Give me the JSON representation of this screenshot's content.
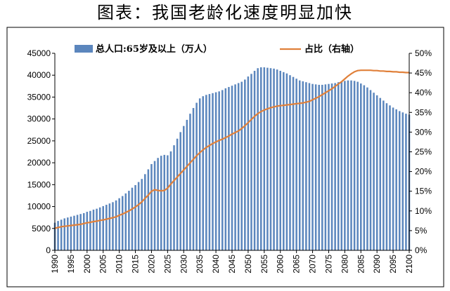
{
  "title": "图表：我国老龄化速度明显加快",
  "colors": {
    "bar": "#5b86bd",
    "line": "#e0803a",
    "frame": "#000000"
  },
  "chart_data": {
    "type": "bar+line",
    "title": "图表：我国老龄化速度明显加快",
    "x": [
      1990,
      1991,
      1992,
      1993,
      1994,
      1995,
      1996,
      1997,
      1998,
      1999,
      2000,
      2001,
      2002,
      2003,
      2004,
      2005,
      2006,
      2007,
      2008,
      2009,
      2010,
      2011,
      2012,
      2013,
      2014,
      2015,
      2016,
      2017,
      2018,
      2019,
      2020,
      2021,
      2022,
      2023,
      2024,
      2025,
      2026,
      2027,
      2028,
      2029,
      2030,
      2031,
      2032,
      2033,
      2034,
      2035,
      2036,
      2037,
      2038,
      2039,
      2040,
      2041,
      2042,
      2043,
      2044,
      2045,
      2046,
      2047,
      2048,
      2049,
      2050,
      2051,
      2052,
      2053,
      2054,
      2055,
      2056,
      2057,
      2058,
      2059,
      2060,
      2061,
      2062,
      2063,
      2064,
      2065,
      2066,
      2067,
      2068,
      2069,
      2070,
      2071,
      2072,
      2073,
      2074,
      2075,
      2076,
      2077,
      2078,
      2079,
      2080,
      2081,
      2082,
      2083,
      2084,
      2085,
      2086,
      2087,
      2088,
      2089,
      2090,
      2091,
      2092,
      2093,
      2094,
      2095,
      2096,
      2097,
      2098,
      2099,
      2100
    ],
    "x_tick_labels": [
      "1990",
      "1995",
      "2000",
      "2005",
      "2010",
      "2015",
      "2020",
      "2025",
      "2030",
      "2035",
      "2040",
      "2045",
      "2050",
      "2055",
      "2060",
      "2065",
      "2070",
      "2075",
      "2080",
      "2085",
      "2090",
      "2095",
      "2100"
    ],
    "series": [
      {
        "name": "总人口:65岁及以上（万人）",
        "type": "bar",
        "axis": "left",
        "values": [
          6300,
          6700,
          7000,
          7300,
          7500,
          7700,
          7900,
          8100,
          8300,
          8500,
          8800,
          9000,
          9300,
          9500,
          9800,
          10100,
          10400,
          10700,
          11000,
          11400,
          11900,
          12400,
          13000,
          13600,
          14300,
          14900,
          15600,
          16300,
          17400,
          18500,
          19700,
          20400,
          21100,
          21600,
          21800,
          21700,
          22600,
          24000,
          25500,
          27000,
          28400,
          29800,
          31200,
          32500,
          33700,
          34700,
          35200,
          35500,
          35700,
          35900,
          36100,
          36300,
          36600,
          37000,
          37300,
          37600,
          37900,
          38200,
          38500,
          39000,
          39700,
          40300,
          41000,
          41600,
          41800,
          41800,
          41700,
          41600,
          41500,
          41300,
          41000,
          40700,
          40400,
          40000,
          39600,
          39200,
          38800,
          38600,
          38400,
          38200,
          38000,
          37900,
          37800,
          37800,
          37900,
          38000,
          38100,
          38200,
          38400,
          38600,
          38700,
          38800,
          38800,
          38700,
          38500,
          38100,
          37700,
          37200,
          36600,
          36000,
          35400,
          34800,
          34200,
          33600,
          33100,
          32600,
          32200,
          31800,
          31500,
          31200,
          31000
        ]
      },
      {
        "name": "占比（右轴）",
        "type": "line",
        "axis": "right",
        "values": [
          5.6,
          5.8,
          6.0,
          6.1,
          6.2,
          6.3,
          6.4,
          6.5,
          6.6,
          6.8,
          7.0,
          7.1,
          7.3,
          7.4,
          7.6,
          7.7,
          7.9,
          8.1,
          8.3,
          8.5,
          8.9,
          9.2,
          9.6,
          10.0,
          10.5,
          11.0,
          11.6,
          12.3,
          13.2,
          14.0,
          15.0,
          15.4,
          15.2,
          15.1,
          15.2,
          15.8,
          16.8,
          17.7,
          18.6,
          19.5,
          20.4,
          21.3,
          22.2,
          23.1,
          24.0,
          24.8,
          25.5,
          26.1,
          26.6,
          27.1,
          27.5,
          27.9,
          28.2,
          28.6,
          29.0,
          29.5,
          29.9,
          30.3,
          30.9,
          31.6,
          32.4,
          33.2,
          34.0,
          34.7,
          35.2,
          35.6,
          35.9,
          36.2,
          36.4,
          36.6,
          36.7,
          36.8,
          36.9,
          37.0,
          37.1,
          37.2,
          37.3,
          37.4,
          37.6,
          37.8,
          38.2,
          38.6,
          39.0,
          39.5,
          40.0,
          40.5,
          41.0,
          41.6,
          42.2,
          42.8,
          43.5,
          44.2,
          44.8,
          45.3,
          45.6,
          45.7,
          45.7,
          45.7,
          45.7,
          45.6,
          45.6,
          45.5,
          45.5,
          45.4,
          45.4,
          45.3,
          45.3,
          45.2,
          45.2,
          45.1,
          45.1
        ]
      }
    ],
    "y_left": {
      "min": 0,
      "max": 45000,
      "step": 5000,
      "tick_labels": [
        "0",
        "5000",
        "10000",
        "15000",
        "20000",
        "25000",
        "30000",
        "35000",
        "40000",
        "45000"
      ]
    },
    "y_right": {
      "min": 0,
      "max": 50,
      "step": 5,
      "tick_labels": [
        "0%",
        "5%",
        "10%",
        "15%",
        "20%",
        "25%",
        "30%",
        "35%",
        "40%",
        "45%",
        "50%"
      ]
    },
    "legend": {
      "placement": "top",
      "entries": [
        "总人口:65岁及以上（万人）",
        "占比（右轴）"
      ]
    },
    "grid": false
  }
}
